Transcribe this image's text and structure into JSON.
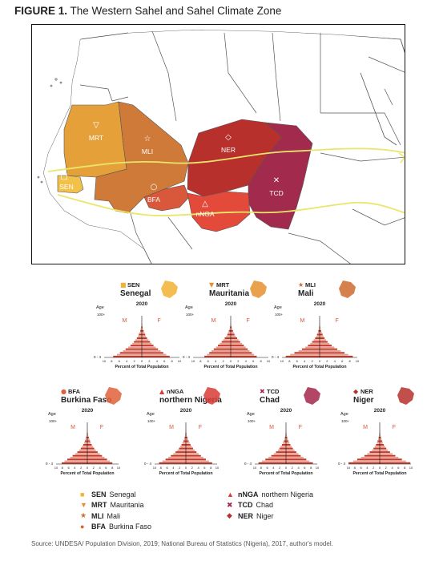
{
  "figure": {
    "label": "FIGURE 1.",
    "title": "The Western Sahel and Sahel Climate Zone"
  },
  "map": {
    "labels": [
      {
        "code": "MRT",
        "symbol": "▽",
        "color": "#e5a03a"
      },
      {
        "code": "MLI",
        "symbol": "☆",
        "color": "#cf7a38"
      },
      {
        "code": "NER",
        "symbol": "◇",
        "color": "#b8302c"
      },
      {
        "code": "SEN",
        "symbol": "□",
        "color": "#f2c14a"
      },
      {
        "code": "BFA",
        "symbol": "○",
        "color": "#d9573a"
      },
      {
        "code": "nNGA",
        "symbol": "△",
        "color": "#e34a3a"
      },
      {
        "code": "TCD",
        "symbol": "✕",
        "color": "#a22a4c"
      }
    ],
    "sahel_line_color": "#e9e66a"
  },
  "pyramids": {
    "year": "2020",
    "axis_label": "Percent of Total Population",
    "age_label": "Age",
    "age_top": "100+",
    "age_bottom": "0 - 4",
    "male_label": "M",
    "female_label": "F",
    "ticks": [
      "10",
      "8",
      "6",
      "4",
      "2",
      "0",
      "2",
      "4",
      "6",
      "8",
      "10"
    ],
    "panels": [
      {
        "code": "SEN",
        "name": "Senegal",
        "symbol": "■",
        "color": "#f2b233",
        "male": [
          7.6,
          6.6,
          5.8,
          5.0,
          4.3,
          3.6,
          3.0,
          2.5,
          2.1,
          1.7,
          1.3,
          1.0,
          0.8,
          0.6,
          0.4,
          0.3,
          0.15,
          0.08,
          0.03,
          0.01,
          0.005
        ],
        "female": [
          7.4,
          6.5,
          5.7,
          5.0,
          4.3,
          3.7,
          3.1,
          2.6,
          2.2,
          1.8,
          1.4,
          1.1,
          0.9,
          0.7,
          0.5,
          0.3,
          0.2,
          0.1,
          0.04,
          0.01,
          0.005
        ]
      },
      {
        "code": "MRT",
        "name": "Mauritania",
        "symbol": "▼",
        "color": "#e5902e",
        "male": [
          7.0,
          6.3,
          5.7,
          5.1,
          4.5,
          3.9,
          3.4,
          2.9,
          2.4,
          2.0,
          1.6,
          1.2,
          0.9,
          0.7,
          0.5,
          0.3,
          0.18,
          0.09,
          0.04,
          0.01,
          0.005
        ],
        "female": [
          6.9,
          6.2,
          5.6,
          5.0,
          4.5,
          4.0,
          3.5,
          3.0,
          2.5,
          2.1,
          1.7,
          1.3,
          1.0,
          0.8,
          0.6,
          0.4,
          0.22,
          0.11,
          0.05,
          0.02,
          0.005
        ]
      },
      {
        "code": "MLI",
        "name": "Mali",
        "symbol": "★",
        "color": "#cf6a2e",
        "male": [
          9.0,
          7.8,
          6.7,
          5.6,
          4.7,
          3.8,
          3.1,
          2.5,
          2.0,
          1.6,
          1.2,
          0.9,
          0.7,
          0.5,
          0.35,
          0.22,
          0.12,
          0.06,
          0.02,
          0.01,
          0.005
        ],
        "female": [
          8.8,
          7.6,
          6.6,
          5.6,
          4.7,
          3.9,
          3.2,
          2.6,
          2.1,
          1.7,
          1.3,
          1.0,
          0.8,
          0.6,
          0.4,
          0.25,
          0.14,
          0.07,
          0.03,
          0.01,
          0.005
        ]
      },
      {
        "code": "BFA",
        "name": "Burkina Faso",
        "symbol": "●",
        "color": "#e0603a",
        "male": [
          8.2,
          7.3,
          6.4,
          5.5,
          4.7,
          3.9,
          3.2,
          2.6,
          2.1,
          1.7,
          1.3,
          1.0,
          0.8,
          0.6,
          0.4,
          0.25,
          0.14,
          0.07,
          0.03,
          0.01,
          0.005
        ],
        "female": [
          8.0,
          7.2,
          6.3,
          5.5,
          4.7,
          4.0,
          3.3,
          2.7,
          2.2,
          1.8,
          1.4,
          1.1,
          0.9,
          0.7,
          0.5,
          0.3,
          0.17,
          0.08,
          0.03,
          0.01,
          0.005
        ]
      },
      {
        "code": "nNGA",
        "name": "northern Nigeria",
        "symbol": "▲",
        "color": "#d93c36",
        "male": [
          8.6,
          7.5,
          6.5,
          5.6,
          4.8,
          4.0,
          3.3,
          2.7,
          2.2,
          1.8,
          1.4,
          1.1,
          0.8,
          0.6,
          0.4,
          0.26,
          0.15,
          0.07,
          0.03,
          0.01,
          0.005
        ],
        "female": [
          8.4,
          7.4,
          6.4,
          5.6,
          4.8,
          4.1,
          3.4,
          2.8,
          2.3,
          1.9,
          1.5,
          1.2,
          0.9,
          0.7,
          0.5,
          0.3,
          0.17,
          0.08,
          0.03,
          0.01,
          0.005
        ]
      },
      {
        "code": "TCD",
        "name": "Chad",
        "symbol": "✖",
        "color": "#a3264a",
        "male": [
          8.8,
          7.7,
          6.6,
          5.6,
          4.7,
          3.9,
          3.2,
          2.6,
          2.1,
          1.7,
          1.3,
          1.0,
          0.7,
          0.5,
          0.35,
          0.22,
          0.12,
          0.06,
          0.02,
          0.01,
          0.005
        ],
        "female": [
          8.6,
          7.5,
          6.5,
          5.6,
          4.7,
          4.0,
          3.3,
          2.7,
          2.2,
          1.8,
          1.4,
          1.1,
          0.8,
          0.6,
          0.4,
          0.25,
          0.14,
          0.07,
          0.03,
          0.01,
          0.005
        ]
      },
      {
        "code": "NER",
        "name": "Niger",
        "symbol": "◆",
        "color": "#b6302c",
        "male": [
          10.0,
          8.5,
          7.2,
          6.0,
          4.9,
          4.0,
          3.2,
          2.5,
          2.0,
          1.6,
          1.2,
          0.9,
          0.7,
          0.5,
          0.35,
          0.22,
          0.12,
          0.06,
          0.02,
          0.01,
          0.005
        ],
        "female": [
          9.8,
          8.4,
          7.1,
          6.0,
          5.0,
          4.1,
          3.3,
          2.6,
          2.1,
          1.7,
          1.3,
          1.0,
          0.8,
          0.6,
          0.4,
          0.25,
          0.14,
          0.07,
          0.03,
          0.01,
          0.005
        ]
      }
    ]
  },
  "legend": {
    "left": [
      {
        "code": "SEN",
        "name": "Senegal",
        "symbol": "■",
        "color": "#f2b233"
      },
      {
        "code": "MRT",
        "name": "Mauritania",
        "symbol": "▼",
        "color": "#e5902e"
      },
      {
        "code": "MLI",
        "name": "Mali",
        "symbol": "★",
        "color": "#cf6a2e"
      },
      {
        "code": "BFA",
        "name": "Burkina Faso",
        "symbol": "●",
        "color": "#e0603a"
      }
    ],
    "right": [
      {
        "code": "nNGA",
        "name": "northern Nigeria",
        "symbol": "▲",
        "color": "#d93c36"
      },
      {
        "code": "TCD",
        "name": "Chad",
        "symbol": "✖",
        "color": "#a3264a"
      },
      {
        "code": "NER",
        "name": "Niger",
        "symbol": "◆",
        "color": "#b6302c"
      }
    ]
  },
  "source": "Source: UNDESA/ Population Division, 2019; National Bureau of Statistics (Nigeria), 2017, author's model."
}
